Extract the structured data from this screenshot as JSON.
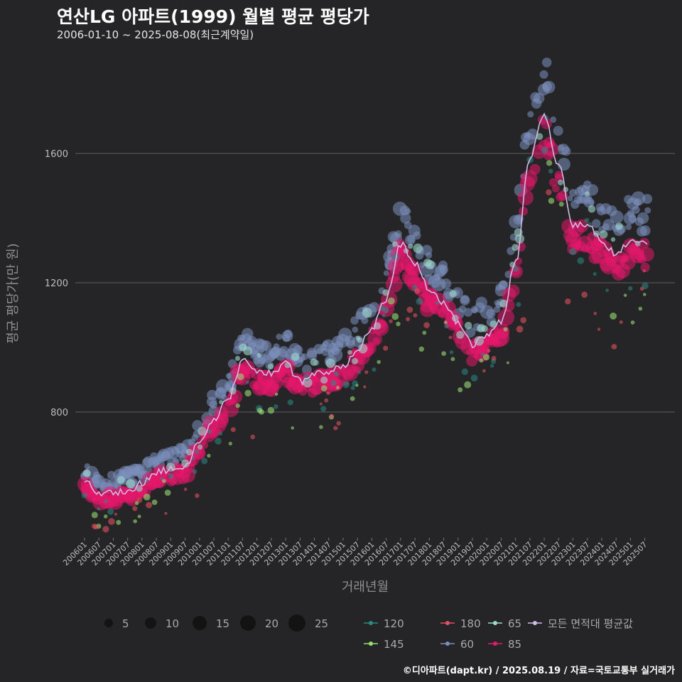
{
  "header": {
    "title": "연산LG 아파트(1999) 월별 평균 평당가",
    "subtitle": "2006-01-10 ~ 2025-08-08(최근계약일)"
  },
  "footer": "©디아파트(dapt.kr) / 2025.08.19 / 자료=국토교통부 실거래가",
  "chart_data": {
    "type": "scatter",
    "title": "연산LG 아파트(1999) 월별 평균 평당가",
    "subtitle": "2006-01-10 ~ 2025-08-08(최근계약일)",
    "xlabel": "거래년월",
    "ylabel": "평균 평당가(만 원)",
    "ylim": [
      340,
      1870
    ],
    "y_ticks": [
      800,
      1200,
      1600
    ],
    "x_ticks": [
      "200601",
      "200607",
      "200701",
      "200707",
      "200801",
      "200807",
      "200901",
      "200907",
      "201001",
      "201007",
      "201101",
      "201107",
      "201201",
      "201207",
      "201301",
      "201307",
      "201401",
      "201407",
      "201501",
      "201507",
      "201601",
      "201607",
      "201701",
      "201707",
      "201801",
      "201807",
      "201901",
      "201907",
      "202001",
      "202007",
      "202101",
      "202107",
      "202201",
      "202207",
      "202301",
      "202307",
      "202401",
      "202407",
      "202501",
      "202507"
    ],
    "grid": true,
    "size_legend": {
      "title": "",
      "values": [
        5,
        10,
        15,
        20,
        25
      ]
    },
    "series_colors": {
      "120": "#2a8a86",
      "145": "#98dd72",
      "180": "#e0505e",
      "60": "#7b8fbd",
      "65": "#9fd8cf",
      "85": "#e6186c",
      "avg": "#d2b9e6"
    },
    "legend": [
      {
        "key": "120",
        "label": "120"
      },
      {
        "key": "180",
        "label": "180"
      },
      {
        "key": "65",
        "label": "65"
      },
      {
        "key": "avg",
        "label": "모든 면적대 평균값"
      },
      {
        "key": "145",
        "label": "145"
      },
      {
        "key": "60",
        "label": "60"
      },
      {
        "key": "85",
        "label": "85"
      }
    ],
    "avg_anchors": [
      [
        "2006-01",
        584
      ],
      [
        "2006-07",
        552
      ],
      [
        "2007-01",
        548
      ],
      [
        "2007-07",
        558
      ],
      [
        "2008-01",
        578
      ],
      [
        "2008-07",
        615
      ],
      [
        "2009-01",
        622
      ],
      [
        "2009-07",
        630
      ],
      [
        "2010-01",
        710
      ],
      [
        "2010-07",
        778
      ],
      [
        "2011-01",
        840
      ],
      [
        "2011-07",
        960
      ],
      [
        "2012-01",
        930
      ],
      [
        "2012-07",
        920
      ],
      [
        "2013-01",
        950
      ],
      [
        "2013-07",
        895
      ],
      [
        "2014-01",
        915
      ],
      [
        "2014-07",
        925
      ],
      [
        "2015-01",
        945
      ],
      [
        "2015-07",
        990
      ],
      [
        "2016-01",
        1060
      ],
      [
        "2016-07",
        1150
      ],
      [
        "2017-01",
        1320
      ],
      [
        "2017-07",
        1260
      ],
      [
        "2018-01",
        1180
      ],
      [
        "2018-07",
        1140
      ],
      [
        "2019-01",
        1075
      ],
      [
        "2019-07",
        1010
      ],
      [
        "2020-01",
        1040
      ],
      [
        "2020-07",
        1080
      ],
      [
        "2021-01",
        1260
      ],
      [
        "2021-07",
        1590
      ],
      [
        "2022-01",
        1720
      ],
      [
        "2022-07",
        1560
      ],
      [
        "2023-01",
        1380
      ],
      [
        "2023-07",
        1380
      ],
      [
        "2024-01",
        1330
      ],
      [
        "2024-07",
        1290
      ],
      [
        "2025-01",
        1330
      ],
      [
        "2025-08",
        1325
      ]
    ]
  }
}
